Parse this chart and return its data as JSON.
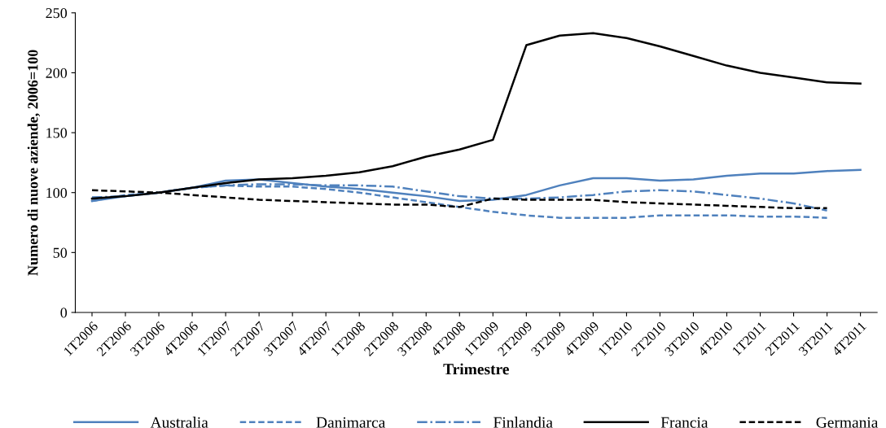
{
  "chart_data": {
    "type": "line",
    "xlabel": "Trimestre",
    "ylabel": "Numero di nuove aziende, 2006=100",
    "categories": [
      "1T2006",
      "2T2006",
      "3T2006",
      "4T2006",
      "1T2007",
      "2T2007",
      "3T2007",
      "4T2007",
      "1T2008",
      "2T2008",
      "3T2008",
      "4T2008",
      "1T2009",
      "2T2009",
      "3T2009",
      "4T2009",
      "1T2010",
      "2T2010",
      "3T2010",
      "4T2010",
      "1T2011",
      "2T2011",
      "3T2011",
      "4T2011"
    ],
    "ylim": [
      0,
      250
    ],
    "yticks": [
      0,
      50,
      100,
      150,
      200,
      250
    ],
    "grid": false,
    "legend": "bottom",
    "marker": "none",
    "series": [
      {
        "name": "Australia",
        "color": "#4f81bd",
        "line_style": "solid",
        "values": [
          93,
          97,
          100,
          104,
          110,
          111,
          108,
          105,
          103,
          100,
          97,
          93,
          94,
          98,
          106,
          112,
          112,
          110,
          111,
          114,
          116,
          116,
          118,
          119
        ]
      },
      {
        "name": "Danimarca",
        "color": "#4f81bd",
        "line_style": "dashed",
        "values": [
          93,
          98,
          100,
          104,
          106,
          105,
          105,
          103,
          100,
          96,
          92,
          88,
          84,
          81,
          79,
          79,
          79,
          81,
          81,
          81,
          80,
          80,
          79,
          null
        ]
      },
      {
        "name": "Finlandia",
        "color": "#4f81bd",
        "line_style": "dashdot",
        "values": [
          96,
          97,
          100,
          104,
          106,
          107,
          107,
          106,
          106,
          105,
          101,
          97,
          95,
          95,
          96,
          98,
          101,
          102,
          101,
          98,
          95,
          91,
          85,
          null
        ]
      },
      {
        "name": "Francia",
        "color": "#000000",
        "line_style": "solid",
        "values": [
          95,
          97,
          100,
          104,
          108,
          111,
          112,
          114,
          117,
          122,
          130,
          136,
          144,
          223,
          231,
          233,
          229,
          222,
          214,
          206,
          200,
          196,
          192,
          191
        ]
      },
      {
        "name": "Germania",
        "color": "#000000",
        "line_style": "dashed",
        "values": [
          102,
          101,
          100,
          98,
          96,
          94,
          93,
          92,
          91,
          90,
          90,
          88,
          95,
          94,
          94,
          94,
          92,
          91,
          90,
          89,
          88,
          87,
          87,
          null
        ]
      }
    ]
  }
}
